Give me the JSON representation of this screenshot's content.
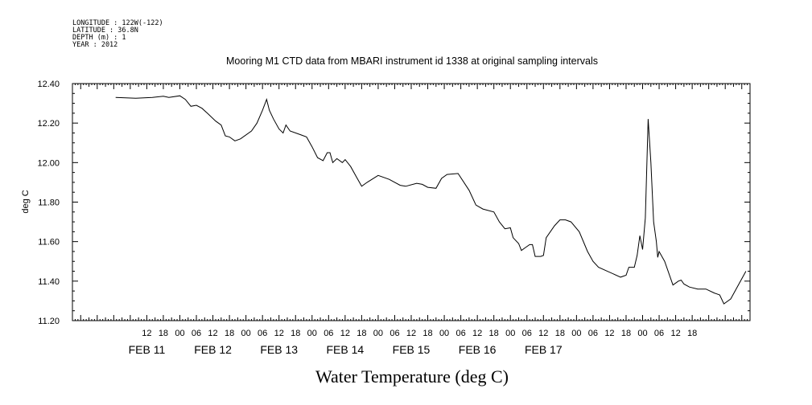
{
  "header": {
    "longitude": "LONGITUDE : 122W(-122)",
    "latitude": "LATITUDE : 36.8N",
    "depth": "DEPTH (m) : 1",
    "year": "YEAR : 2012"
  },
  "chart_data": {
    "type": "line",
    "title": "Mooring M1 CTD data from MBARI instrument id 1338 at original sampling intervals",
    "xlabel": "Water Temperature (deg C)",
    "ylabel": "deg C",
    "ylim": [
      11.2,
      12.4
    ],
    "xlim": [
      -15,
      231
    ],
    "x_unit_note": "hours from FEB 11 00:00, 2012",
    "yticks": [
      "11.20",
      "11.40",
      "11.60",
      "11.80",
      "12.00",
      "12.20",
      "12.40"
    ],
    "hour_ticks": [
      {
        "hour": 12,
        "label": "12"
      },
      {
        "hour": 18,
        "label": "18"
      },
      {
        "hour": 24,
        "label": "00"
      },
      {
        "hour": 30,
        "label": "06"
      },
      {
        "hour": 36,
        "label": "12"
      },
      {
        "hour": 42,
        "label": "18"
      },
      {
        "hour": 48,
        "label": "00"
      },
      {
        "hour": 54,
        "label": "06"
      },
      {
        "hour": 60,
        "label": "12"
      },
      {
        "hour": 66,
        "label": "18"
      },
      {
        "hour": 72,
        "label": "00"
      },
      {
        "hour": 78,
        "label": "06"
      },
      {
        "hour": 84,
        "label": "12"
      },
      {
        "hour": 90,
        "label": "18"
      },
      {
        "hour": 96,
        "label": "00"
      },
      {
        "hour": 102,
        "label": "06"
      },
      {
        "hour": 108,
        "label": "12"
      },
      {
        "hour": 114,
        "label": "18"
      },
      {
        "hour": 120,
        "label": "00"
      },
      {
        "hour": 126,
        "label": "06"
      },
      {
        "hour": 132,
        "label": "12"
      },
      {
        "hour": 138,
        "label": "18"
      },
      {
        "hour": 144,
        "label": "00"
      },
      {
        "hour": 150,
        "label": "06"
      },
      {
        "hour": 156,
        "label": "12"
      },
      {
        "hour": 162,
        "label": "18"
      },
      {
        "hour": 168,
        "label": "00"
      },
      {
        "hour": 174,
        "label": "06"
      },
      {
        "hour": 180,
        "label": "12"
      },
      {
        "hour": 186,
        "label": "18"
      },
      {
        "hour": 192,
        "label": "00"
      },
      {
        "hour": 198,
        "label": "06"
      },
      {
        "hour": 204,
        "label": "12"
      },
      {
        "hour": 210,
        "label": "18"
      }
    ],
    "day_labels": [
      {
        "hour": 12,
        "label": "FEB 11"
      },
      {
        "hour": 36,
        "label": "FEB 12"
      },
      {
        "hour": 60,
        "label": "FEB 13"
      },
      {
        "hour": 84,
        "label": "FEB 14"
      },
      {
        "hour": 108,
        "label": "FEB 15"
      },
      {
        "hour": 132,
        "label": "FEB 16"
      },
      {
        "hour": 156,
        "label": "FEB 17"
      }
    ],
    "series": [
      {
        "color": "#000000",
        "points": [
          [
            0.7,
            12.33
          ],
          [
            8,
            12.326
          ],
          [
            14,
            12.33
          ],
          [
            18,
            12.336
          ],
          [
            20,
            12.33
          ],
          [
            24,
            12.338
          ],
          [
            26,
            12.32
          ],
          [
            28,
            12.285
          ],
          [
            30,
            12.29
          ],
          [
            32,
            12.275
          ],
          [
            34,
            12.25
          ],
          [
            37,
            12.21
          ],
          [
            39,
            12.19
          ],
          [
            40.5,
            12.135
          ],
          [
            42,
            12.13
          ],
          [
            44,
            12.11
          ],
          [
            46,
            12.12
          ],
          [
            50,
            12.16
          ],
          [
            52,
            12.2
          ],
          [
            54,
            12.265
          ],
          [
            55.5,
            12.32
          ],
          [
            56.5,
            12.265
          ],
          [
            58,
            12.22
          ],
          [
            60,
            12.17
          ],
          [
            61.5,
            12.15
          ],
          [
            62.5,
            12.19
          ],
          [
            64,
            12.16
          ],
          [
            68,
            12.14
          ],
          [
            70,
            12.13
          ],
          [
            72,
            12.08
          ],
          [
            74,
            12.025
          ],
          [
            76,
            12.01
          ],
          [
            77.5,
            12.05
          ],
          [
            78.5,
            12.05
          ],
          [
            79.5,
            12.0
          ],
          [
            81,
            12.02
          ],
          [
            83,
            12.0
          ],
          [
            84,
            12.015
          ],
          [
            86,
            11.98
          ],
          [
            88,
            11.93
          ],
          [
            90,
            11.88
          ],
          [
            92,
            11.9
          ],
          [
            96,
            11.935
          ],
          [
            100,
            11.915
          ],
          [
            104,
            11.885
          ],
          [
            106,
            11.88
          ],
          [
            110,
            11.895
          ],
          [
            112,
            11.89
          ],
          [
            114,
            11.875
          ],
          [
            117,
            11.87
          ],
          [
            119,
            11.92
          ],
          [
            121,
            11.94
          ],
          [
            125,
            11.945
          ],
          [
            129,
            11.86
          ],
          [
            131.5,
            11.785
          ],
          [
            134,
            11.765
          ],
          [
            138,
            11.75
          ],
          [
            140,
            11.7
          ],
          [
            142,
            11.665
          ],
          [
            144,
            11.67
          ],
          [
            145,
            11.62
          ],
          [
            147,
            11.59
          ],
          [
            148,
            11.555
          ],
          [
            149.5,
            11.57
          ],
          [
            151,
            11.585
          ],
          [
            152,
            11.585
          ],
          [
            153,
            11.525
          ],
          [
            155,
            11.525
          ],
          [
            156,
            11.53
          ],
          [
            157,
            11.62
          ],
          [
            160,
            11.68
          ],
          [
            162,
            11.71
          ],
          [
            164,
            11.71
          ],
          [
            166,
            11.7
          ],
          [
            169,
            11.65
          ],
          [
            172,
            11.55
          ],
          [
            174,
            11.5
          ],
          [
            176,
            11.47
          ],
          [
            184,
            11.42
          ],
          [
            186,
            11.43
          ],
          [
            187,
            11.47
          ],
          [
            189,
            11.47
          ],
          [
            190,
            11.53
          ],
          [
            191,
            11.63
          ],
          [
            192,
            11.56
          ],
          [
            193,
            11.72
          ],
          [
            194,
            12.22
          ],
          [
            195,
            12.0
          ],
          [
            196,
            11.7
          ],
          [
            197,
            11.6
          ],
          [
            197.5,
            11.52
          ],
          [
            198,
            11.55
          ],
          [
            200,
            11.5
          ],
          [
            203,
            11.38
          ],
          [
            205,
            11.4
          ],
          [
            206,
            11.405
          ],
          [
            207,
            11.385
          ],
          [
            209,
            11.37
          ],
          [
            212,
            11.36
          ],
          [
            215,
            11.36
          ],
          [
            218,
            11.34
          ],
          [
            220,
            11.33
          ],
          [
            221.5,
            11.285
          ],
          [
            224,
            11.31
          ],
          [
            229.5,
            11.45
          ]
        ]
      }
    ]
  }
}
